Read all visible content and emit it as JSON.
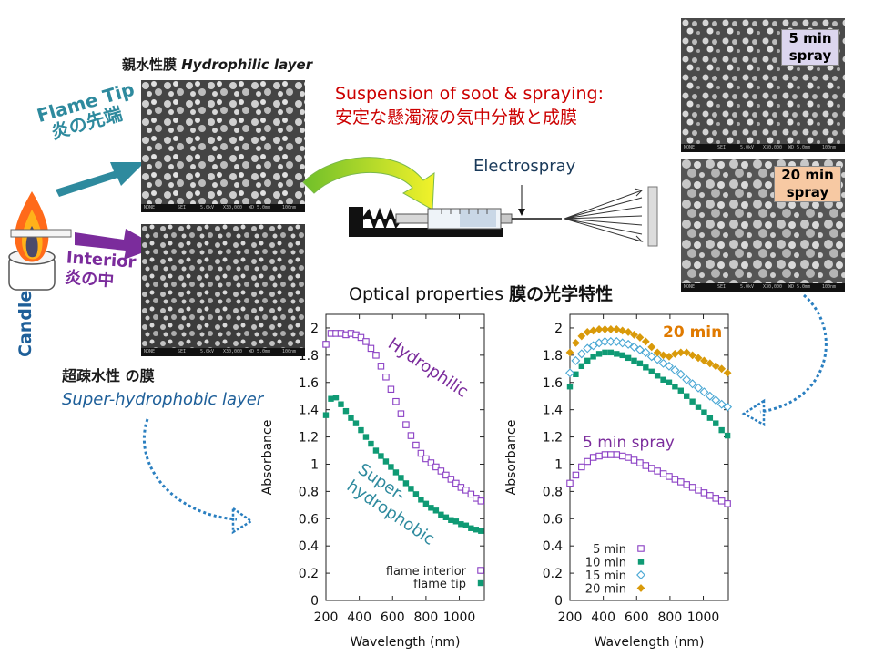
{
  "colors": {
    "teal": "#2e8a9e",
    "purple": "#7b2c9c",
    "red": "#cc0000",
    "orange": "#e07a00",
    "green": "#118f6b",
    "lightblue": "#49a7d4",
    "gold": "#d99a0a",
    "blue_dotted": "#2a7fc0"
  },
  "labels": {
    "hydrophilic_jp": "親水性膜",
    "hydrophilic_en": "Hydrophilic layer",
    "flame_tip_en": "Flame Tip",
    "flame_tip_jp": "炎の先端",
    "interior_en": "Interior",
    "interior_jp": "炎の中",
    "candle": "Candle",
    "superhydrophobic_jp": "超疎水性 の膜",
    "superhydrophobic_en": "Super-hydrophobic layer",
    "suspension_en": "Suspension of soot & spraying:",
    "suspension_jp": "安定な懸濁液の気中分散と成膜",
    "electrospray": "Electrospray",
    "tag_5min": "5 min spray",
    "tag_20min": "20 min spray",
    "optical_en": "Optical properties",
    "optical_jp": "膜の光学特性"
  },
  "sem_bar": [
    "NONE",
    "SEI",
    "5.0kV",
    "X30,000",
    "WD 5.0mm",
    "100nm"
  ],
  "chart_data": [
    {
      "type": "scatter",
      "xlabel": "Wavelength (nm)",
      "ylabel": "Absorbance",
      "xlim": [
        200,
        1150
      ],
      "ylim": [
        0,
        2.1
      ],
      "xticks": [
        200,
        400,
        600,
        800,
        1000
      ],
      "yticks": [
        0,
        0.2,
        0.4,
        0.6,
        0.8,
        1,
        1.2,
        1.4,
        1.6,
        1.8,
        2
      ],
      "ytick_labels": [
        "0",
        "0.2",
        "0.4",
        "0.6",
        "0.8",
        "1",
        "1.2",
        "1.4",
        "1.6",
        "1.8",
        "2"
      ],
      "x": [
        200,
        230,
        260,
        290,
        320,
        350,
        380,
        410,
        440,
        470,
        500,
        530,
        560,
        590,
        620,
        650,
        680,
        710,
        740,
        770,
        800,
        830,
        860,
        890,
        920,
        950,
        980,
        1010,
        1040,
        1070,
        1100,
        1130
      ],
      "annotations": [
        "Hydrophilic",
        "Super-hydrophobic"
      ],
      "series": [
        {
          "name": "flame interior",
          "marker": "square-open",
          "color": "#8a3fc4",
          "values": [
            1.88,
            1.96,
            1.96,
            1.96,
            1.95,
            1.96,
            1.95,
            1.93,
            1.9,
            1.85,
            1.8,
            1.72,
            1.64,
            1.55,
            1.46,
            1.37,
            1.29,
            1.21,
            1.14,
            1.08,
            1.04,
            1.01,
            0.98,
            0.95,
            0.92,
            0.89,
            0.86,
            0.83,
            0.81,
            0.78,
            0.75,
            0.73
          ]
        },
        {
          "name": "flame tip",
          "marker": "square-filled",
          "color": "#0f9a74",
          "values": [
            1.36,
            1.48,
            1.49,
            1.44,
            1.39,
            1.34,
            1.3,
            1.25,
            1.2,
            1.15,
            1.1,
            1.06,
            1.02,
            0.98,
            0.94,
            0.9,
            0.86,
            0.82,
            0.78,
            0.74,
            0.71,
            0.68,
            0.66,
            0.63,
            0.61,
            0.59,
            0.58,
            0.56,
            0.55,
            0.53,
            0.52,
            0.51
          ]
        }
      ]
    },
    {
      "type": "scatter",
      "xlabel": "Wavelength (nm)",
      "ylabel": "Absorbance",
      "xlim": [
        200,
        1150
      ],
      "ylim": [
        0,
        2.1
      ],
      "xticks": [
        200,
        400,
        600,
        800,
        1000
      ],
      "yticks": [
        0,
        0.2,
        0.4,
        0.6,
        0.8,
        1,
        1.2,
        1.4,
        1.6,
        1.8,
        2
      ],
      "ytick_labels": [
        "0",
        "0.2",
        "0.4",
        "0.6",
        "0.8",
        "1",
        "1.2",
        "1.4",
        "1.6",
        "1.8",
        "2"
      ],
      "x": [
        200,
        235,
        270,
        305,
        340,
        375,
        410,
        445,
        480,
        515,
        550,
        585,
        620,
        655,
        690,
        725,
        760,
        795,
        830,
        865,
        900,
        935,
        970,
        1005,
        1040,
        1075,
        1110,
        1145
      ],
      "annotations": [
        "20 min",
        "5 min spray"
      ],
      "series": [
        {
          "name": "5 min",
          "marker": "square-open",
          "color": "#8a3fc4",
          "values": [
            0.86,
            0.92,
            0.98,
            1.02,
            1.05,
            1.06,
            1.07,
            1.07,
            1.07,
            1.06,
            1.05,
            1.03,
            1.01,
            0.99,
            0.97,
            0.95,
            0.93,
            0.91,
            0.89,
            0.87,
            0.85,
            0.83,
            0.81,
            0.79,
            0.77,
            0.75,
            0.73,
            0.71
          ]
        },
        {
          "name": "10 min",
          "marker": "square-filled",
          "color": "#0f9a74",
          "values": [
            1.57,
            1.66,
            1.72,
            1.76,
            1.79,
            1.81,
            1.82,
            1.82,
            1.81,
            1.8,
            1.78,
            1.76,
            1.74,
            1.71,
            1.68,
            1.65,
            1.62,
            1.6,
            1.57,
            1.54,
            1.5,
            1.46,
            1.42,
            1.38,
            1.34,
            1.3,
            1.25,
            1.21
          ]
        },
        {
          "name": "15 min",
          "marker": "diamond-open",
          "color": "#49a7d4",
          "values": [
            1.67,
            1.76,
            1.81,
            1.85,
            1.87,
            1.89,
            1.9,
            1.9,
            1.9,
            1.89,
            1.88,
            1.86,
            1.84,
            1.82,
            1.79,
            1.77,
            1.74,
            1.72,
            1.69,
            1.66,
            1.62,
            1.59,
            1.56,
            1.53,
            1.5,
            1.47,
            1.44,
            1.42
          ]
        },
        {
          "name": "20 min",
          "marker": "diamond-filled",
          "color": "#d99a0a",
          "values": [
            1.82,
            1.89,
            1.94,
            1.97,
            1.98,
            1.99,
            1.99,
            1.99,
            1.99,
            1.98,
            1.97,
            1.95,
            1.93,
            1.9,
            1.86,
            1.82,
            1.8,
            1.79,
            1.81,
            1.82,
            1.82,
            1.8,
            1.78,
            1.76,
            1.74,
            1.72,
            1.7,
            1.67
          ]
        }
      ]
    }
  ]
}
